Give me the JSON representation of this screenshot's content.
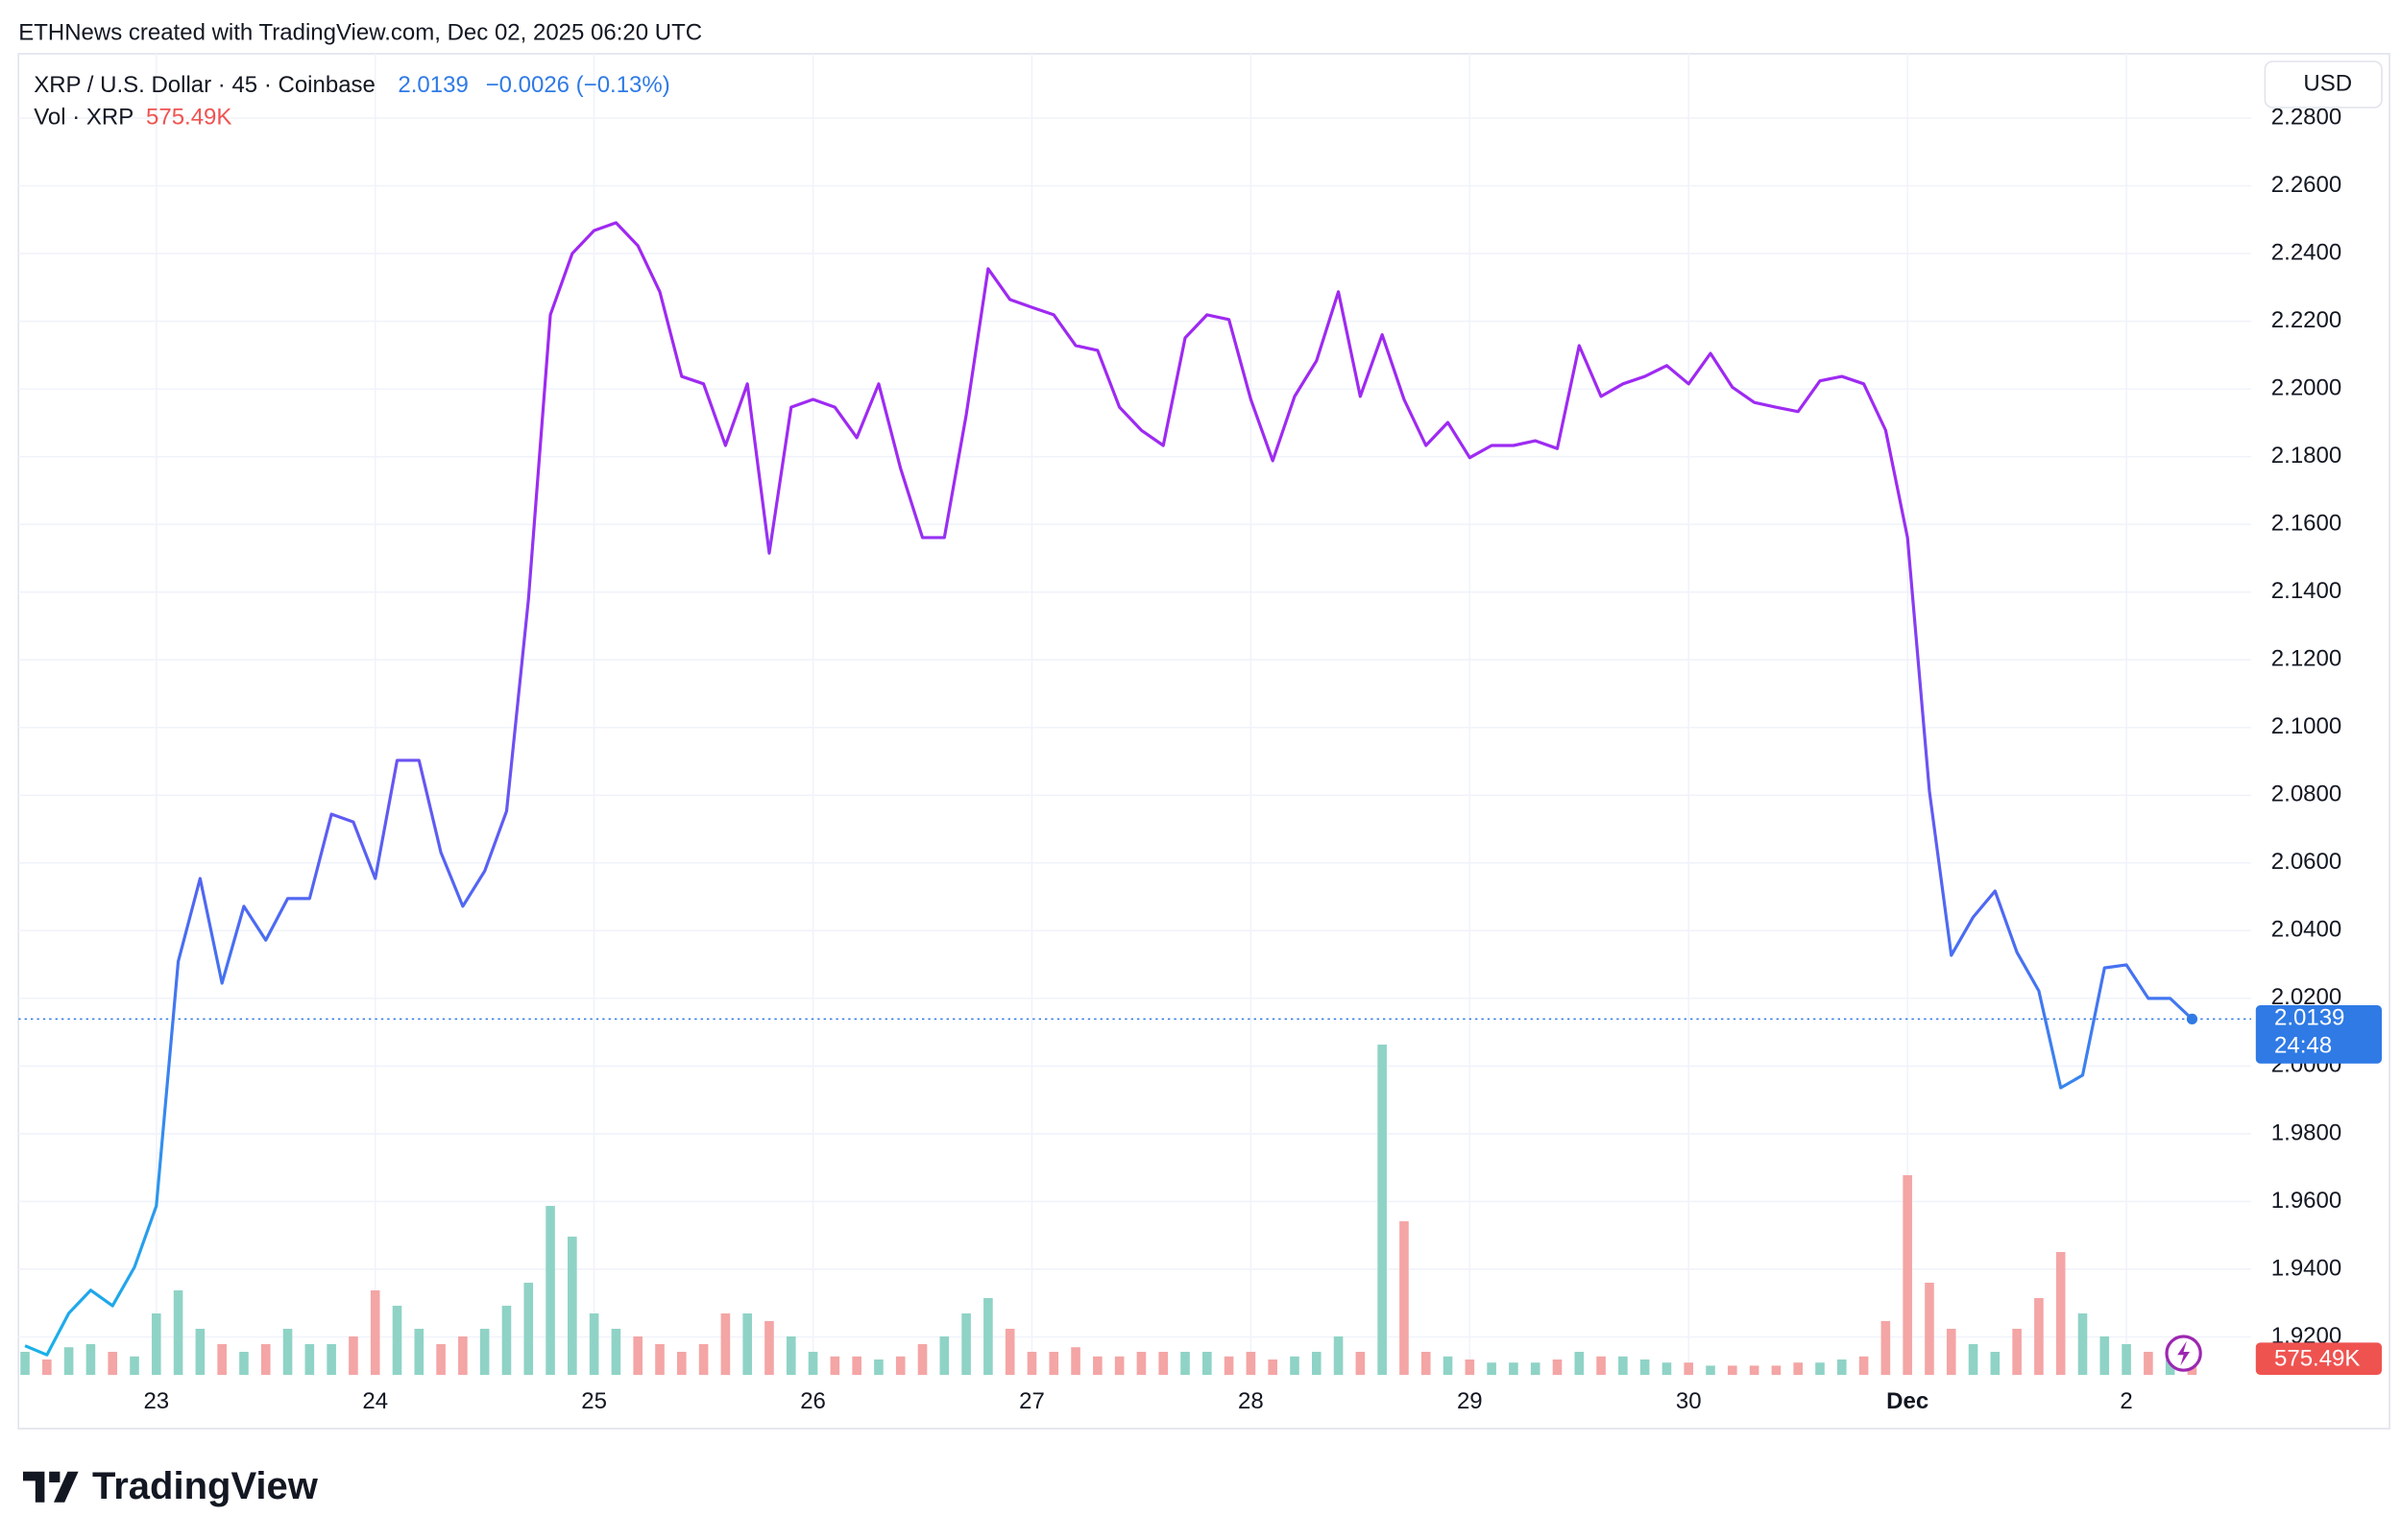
{
  "header": {
    "text": "ETHNews created with TradingView.com, Dec 02, 2025 06:20 UTC"
  },
  "footer": {
    "brand": "TradingView"
  },
  "chart_data": {
    "type": "line",
    "currency": "USD",
    "change_label": "−0.0026 (−0.13%)",
    "countdown": "24:48",
    "x": [
      22.4,
      22.5,
      22.6,
      22.7,
      22.8,
      22.9,
      23.0,
      23.1,
      23.2,
      23.3,
      23.4,
      23.5,
      23.6,
      23.7,
      23.8,
      23.9,
      24.0,
      24.1,
      24.2,
      24.3,
      24.4,
      24.5,
      24.6,
      24.7,
      24.8,
      24.9,
      25.0,
      25.1,
      25.2,
      25.3,
      25.4,
      25.5,
      25.6,
      25.7,
      25.8,
      25.9,
      26.0,
      26.1,
      26.2,
      26.3,
      26.4,
      26.5,
      26.6,
      26.7,
      26.8,
      26.9,
      27.0,
      27.1,
      27.2,
      27.3,
      27.4,
      27.5,
      27.6,
      27.7,
      27.8,
      27.9,
      28.0,
      28.1,
      28.2,
      28.3,
      28.4,
      28.5,
      28.6,
      28.7,
      28.8,
      28.9,
      29.0,
      29.1,
      29.2,
      29.3,
      29.4,
      29.5,
      29.6,
      29.7,
      29.8,
      29.9,
      30.0,
      30.1,
      30.2,
      30.3,
      30.4,
      30.5,
      30.6,
      30.7,
      30.8,
      30.9,
      31.0,
      31.1,
      31.2,
      31.3,
      31.4,
      31.5,
      31.6,
      31.7,
      31.8,
      31.9,
      32.0,
      32.1,
      32.2,
      32.3
    ],
    "series": [
      {
        "name": "XRP / U.S. Dollar · 45 · Coinbase",
        "colors": [
          "#18b4e8",
          "#4a6cf2",
          "#9d2cf2",
          "#a126f0"
        ],
        "last_color": "#2f7ae5",
        "values": [
          1.9174,
          1.9147,
          1.927,
          1.9338,
          1.9292,
          1.9406,
          1.9587,
          2.0309,
          2.0554,
          2.0245,
          2.0472,
          2.0372,
          2.0495,
          2.0495,
          2.0744,
          2.0721,
          2.0554,
          2.0903,
          2.0903,
          2.0631,
          2.0472,
          2.0576,
          2.0753,
          2.1379,
          2.2219,
          2.24,
          2.2468,
          2.2491,
          2.2423,
          2.2287,
          2.2037,
          2.2015,
          2.1833,
          2.2015,
          2.1515,
          2.1946,
          2.1969,
          2.1946,
          2.1856,
          2.2015,
          2.1765,
          2.1561,
          2.1561,
          2.1924,
          2.2355,
          2.2264,
          2.2241,
          2.2219,
          2.2128,
          2.2114,
          2.1946,
          2.1878,
          2.1833,
          2.2151,
          2.2219,
          2.2205,
          2.1969,
          2.1788,
          2.1978,
          2.2083,
          2.2287,
          2.1978,
          2.216,
          2.1969,
          2.1833,
          2.1901,
          2.1797,
          2.1833,
          2.1833,
          2.1847,
          2.1824,
          2.2128,
          2.1978,
          2.2015,
          2.2037,
          2.2069,
          2.2015,
          2.2105,
          2.2005,
          2.196,
          2.1946,
          2.1933,
          2.2024,
          2.2037,
          2.2015,
          2.1878,
          2.1561,
          2.0812,
          2.0327,
          2.044,
          2.0517,
          2.0336,
          2.0222,
          1.9936,
          1.9973,
          2.029,
          2.0299,
          2.02,
          2.02,
          2.0139
        ]
      },
      {
        "name": "Vol · XRP",
        "axis": "y2",
        "type": "bar",
        "up_color": "#8fd3c6",
        "down_color": "#f4a5a5",
        "label_color": "#ef5350",
        "values": [
          698000,
          465000,
          837000,
          930000,
          698000,
          558000,
          1860000,
          2558000,
          1395000,
          930000,
          698000,
          930000,
          1395000,
          930000,
          930000,
          1163000,
          2558000,
          2093000,
          1395000,
          930000,
          1163000,
          1395000,
          2093000,
          2790000,
          5115000,
          4185000,
          1860000,
          1395000,
          1163000,
          930000,
          698000,
          930000,
          1860000,
          1860000,
          1628000,
          1163000,
          698000,
          558000,
          558000,
          465000,
          558000,
          930000,
          1163000,
          1860000,
          2325000,
          1395000,
          698000,
          698000,
          837000,
          558000,
          558000,
          698000,
          698000,
          698000,
          698000,
          558000,
          698000,
          465000,
          558000,
          698000,
          1163000,
          698000,
          10000000,
          4650000,
          698000,
          558000,
          465000,
          372000,
          372000,
          372000,
          465000,
          698000,
          558000,
          558000,
          465000,
          372000,
          372000,
          279000,
          279000,
          279000,
          279000,
          372000,
          372000,
          465000,
          558000,
          1628000,
          6045000,
          2790000,
          1395000,
          930000,
          698000,
          1395000,
          2325000,
          3720000,
          1860000,
          1163000,
          930000,
          698000,
          465000,
          575490
        ],
        "value_labels": [
          null,
          null,
          null,
          null,
          null,
          null,
          null,
          null,
          null,
          null,
          null,
          null,
          null,
          null,
          null,
          null,
          null,
          null,
          null,
          null,
          null,
          null,
          null,
          null,
          null,
          null,
          null,
          null,
          null,
          null,
          null,
          null,
          null,
          null,
          null,
          null,
          null,
          null,
          null,
          null,
          null,
          null,
          null,
          null,
          null,
          null,
          null,
          null,
          null,
          null,
          null,
          null,
          null,
          null,
          null,
          null,
          null,
          null,
          null,
          null,
          null,
          null,
          null,
          null,
          null,
          null,
          null,
          null,
          null,
          null,
          null,
          null,
          null,
          null,
          null,
          null,
          null,
          null,
          null,
          null,
          null,
          null,
          null,
          null,
          null,
          null,
          null,
          null,
          null,
          null,
          null,
          null,
          null,
          null,
          null,
          null,
          null,
          null,
          null,
          "575.49K"
        ]
      }
    ],
    "xlim": [
      22.37,
      32.57
    ],
    "xticks": [
      23,
      24,
      25,
      26,
      27,
      28,
      29,
      30,
      {
        "value": 31,
        "label": "Dec"
      },
      {
        "value": 32,
        "label": "2"
      }
    ],
    "ylim": [
      1.9088,
      2.299
    ],
    "yticks": [
      {
        "value": 1.92,
        "label": "1.9200"
      },
      {
        "value": 1.94,
        "label": "1.9400"
      },
      {
        "value": 1.96,
        "label": "1.9600"
      },
      {
        "value": 1.98,
        "label": "1.9800"
      },
      {
        "value": 2.0,
        "label": "2.0000"
      },
      {
        "value": 2.02,
        "label": "2.0200"
      },
      {
        "value": 2.04,
        "label": "2.0400"
      },
      {
        "value": 2.06,
        "label": "2.0600"
      },
      {
        "value": 2.08,
        "label": "2.0800"
      },
      {
        "value": 2.1,
        "label": "2.1000"
      },
      {
        "value": 2.12,
        "label": "2.1200"
      },
      {
        "value": 2.14,
        "label": "2.1400"
      },
      {
        "value": 2.16,
        "label": "2.1600"
      },
      {
        "value": 2.18,
        "label": "2.1800"
      },
      {
        "value": 2.2,
        "label": "2.2000"
      },
      {
        "value": 2.22,
        "label": "2.2200"
      },
      {
        "value": 2.24,
        "label": "2.2400"
      },
      {
        "value": 2.26,
        "label": "2.2600"
      },
      {
        "value": 2.28,
        "label": "2.2800"
      }
    ],
    "y2lim": [
      0,
      40000000
    ],
    "grid": true,
    "legend": "top-left"
  }
}
